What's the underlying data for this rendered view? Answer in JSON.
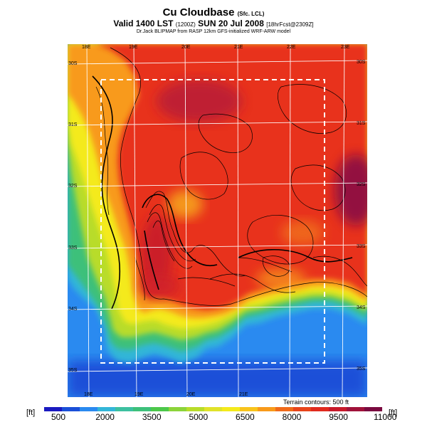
{
  "header": {
    "title": "Cu Cloudbase",
    "title_qualifier": "(Sfc. LCL)",
    "valid_line": "Valid 1400 LST",
    "valid_utc": "(1200Z)",
    "valid_date": "SUN 20 Jul 2008",
    "forecast_info": "[18hrFcst@2309Z]",
    "credit": "Dr.Jack BLIPMAP from RASP 12km GFS-initialized WRF-ARW model"
  },
  "map": {
    "top_lon_labels": [
      "18E",
      "19E",
      "20E",
      "21E",
      "22E",
      "23E"
    ],
    "bottom_lon_labels": [
      "18E",
      "19E",
      "20E",
      "21E"
    ],
    "left_lat_labels": [
      "30S",
      "31S",
      "32S",
      "33S",
      "34S",
      "35S"
    ],
    "right_lat_labels": [
      "30S",
      "31S",
      "32S",
      "33S",
      "34S",
      "35S"
    ],
    "terrain_note": "Terrain contours: 500 ft",
    "palette": {
      "sea_deep": "#1a4fd8",
      "sea": "#2a8af0",
      "coast": "#33b6d8",
      "low": "#3dc07a",
      "mid": "#b8dc2a",
      "yellow": "#f4ea1c",
      "orange": "#f89a1a",
      "red": "#e8301a",
      "deep_red": "#b81a38",
      "grid": "#ffffff",
      "window": "#ffffff"
    }
  },
  "colorbar": {
    "unit_left": "[ft]",
    "unit_right": "[ft]",
    "ticks": [
      "500",
      "2000",
      "3500",
      "5000",
      "6500",
      "8000",
      "9500",
      "11000"
    ],
    "colors": [
      "#1a1ac0",
      "#1a4fd8",
      "#2a8af0",
      "#33b6d8",
      "#3dc0a0",
      "#3dc07a",
      "#4cc84a",
      "#8cd43a",
      "#b8dc2a",
      "#e0e22a",
      "#f4ea1c",
      "#f8c41c",
      "#f89a1a",
      "#f06a1a",
      "#e8441a",
      "#e02a1e",
      "#c81a2a",
      "#a0123a",
      "#7a0a40"
    ]
  }
}
